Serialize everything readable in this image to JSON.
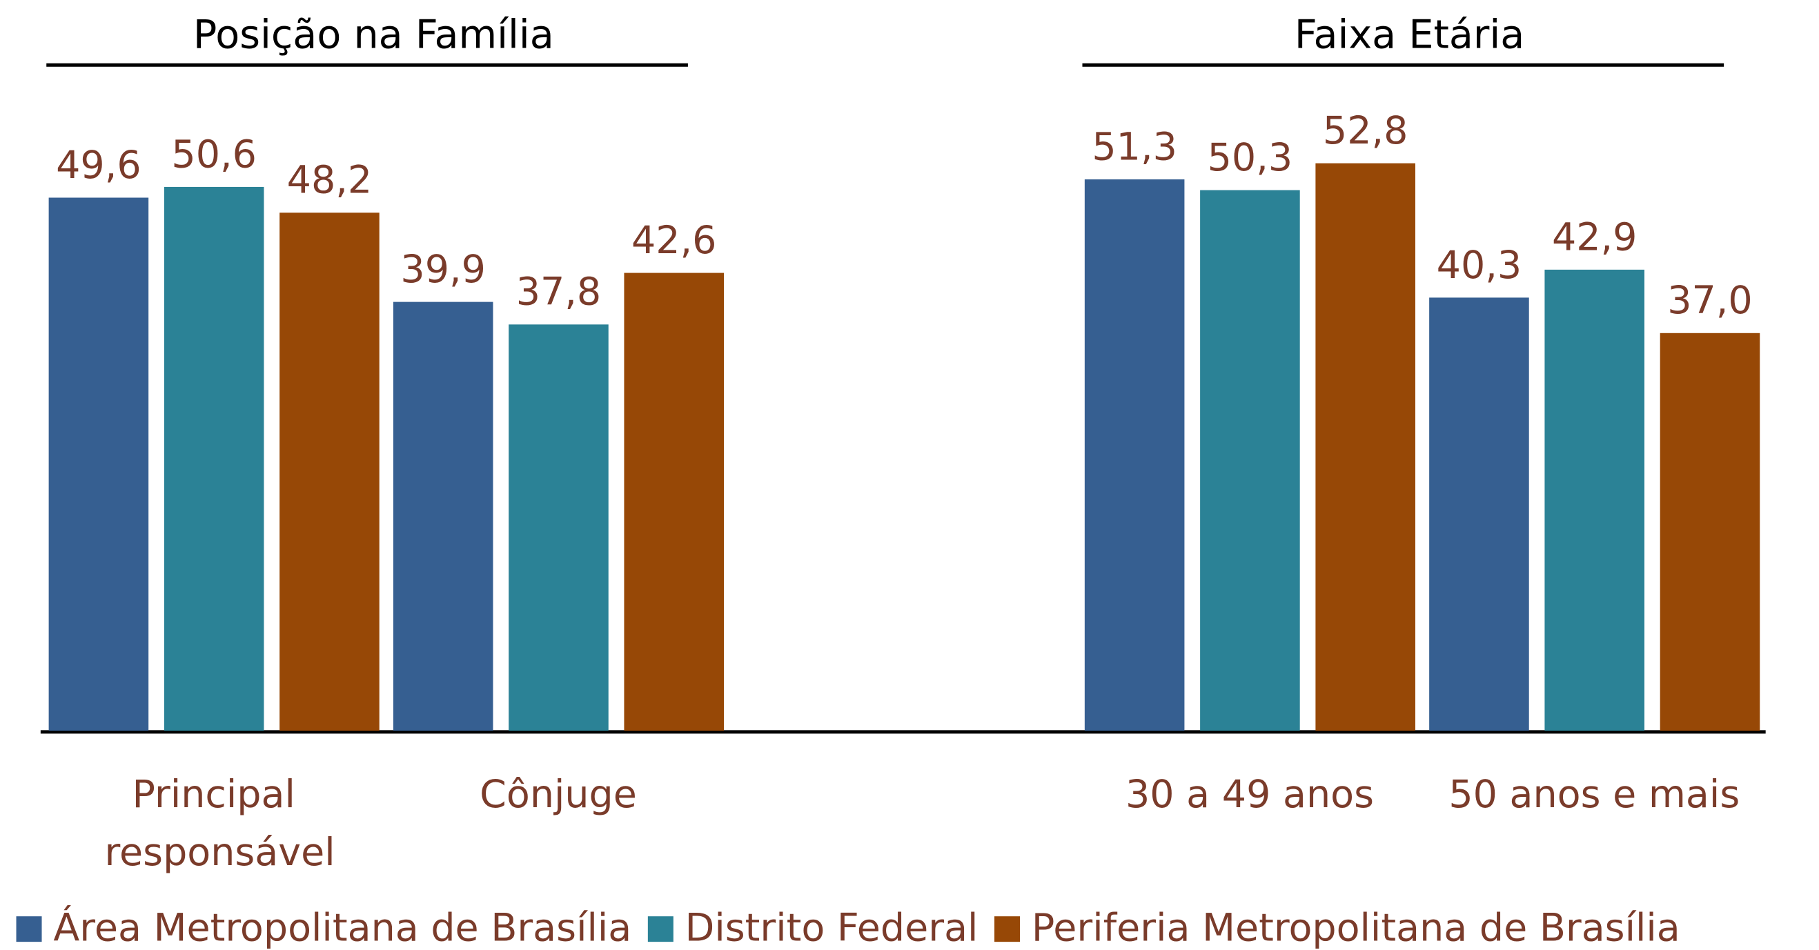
{
  "chart_data": [
    {
      "type": "bar",
      "title": "Posição na Família",
      "categories": [
        "Principal responsável",
        "Cônjuge"
      ],
      "ylim": [
        0,
        60
      ],
      "series": [
        {
          "name": "Área Metropolitana de Brasília",
          "color": "#365f91",
          "values": [
            49.6,
            39.9
          ],
          "value_labels": [
            "49,6",
            "39,9"
          ]
        },
        {
          "name": "Distrito Federal",
          "color": "#2b8296",
          "values": [
            50.6,
            37.8
          ],
          "value_labels": [
            "50,6",
            "37,8"
          ]
        },
        {
          "name": "Periferia Metropolitana de Brasília",
          "color": "#974806",
          "values": [
            48.2,
            42.6
          ],
          "value_labels": [
            "48,2",
            "42,6"
          ]
        }
      ]
    },
    {
      "type": "bar",
      "title": "Faixa Etária",
      "categories": [
        "30 a 49 anos",
        "50 anos e mais"
      ],
      "ylim": [
        0,
        60
      ],
      "series": [
        {
          "color": "#365f91",
          "values": [
            51.3,
            40.3
          ],
          "value_labels": [
            "51,3",
            "40,3"
          ]
        },
        {
          "color": "#2b8296",
          "values": [
            50.3,
            42.9
          ],
          "value_labels": [
            "50,3",
            "42,9"
          ]
        },
        {
          "color": "#974806",
          "values": [
            52.8,
            37.0
          ],
          "value_labels": [
            "52,8",
            "37,0"
          ]
        }
      ]
    }
  ]
}
